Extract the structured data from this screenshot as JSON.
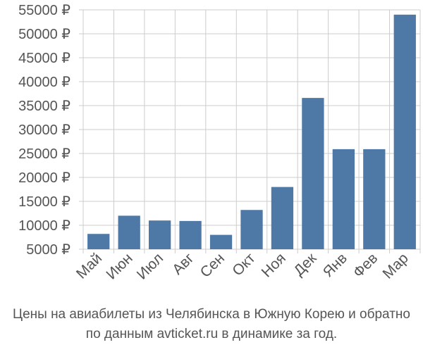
{
  "caption": {
    "line1": "Цены на авиабилеты из Челябинска в Южную Корею и обратно",
    "line2": "по данным avticket.ru в динамике за год."
  },
  "colors": {
    "bar": "#4e79a7",
    "grid": "#cccccc",
    "tick_text": "#555555",
    "background": "#ffffff"
  },
  "chart_data": {
    "type": "bar",
    "categories": [
      "Май",
      "Июн",
      "Июл",
      "Авг",
      "Сен",
      "Окт",
      "Ноя",
      "Дек",
      "Янв",
      "Фев",
      "Мар"
    ],
    "values": [
      8200,
      12000,
      11000,
      10900,
      8000,
      13200,
      18000,
      36600,
      25900,
      25900,
      54000
    ],
    "ylim": [
      5000,
      55000
    ],
    "yticks": [
      5000,
      10000,
      15000,
      20000,
      25000,
      30000,
      35000,
      40000,
      45000,
      50000,
      55000
    ],
    "ytick_labels": [
      "5000 ₽",
      "10000 ₽",
      "15000 ₽",
      "20000 ₽",
      "25000 ₽",
      "30000 ₽",
      "35000 ₽",
      "40000 ₽",
      "45000 ₽",
      "50000 ₽",
      "55000 ₽"
    ],
    "grid": true,
    "xlabel": "",
    "ylabel": ""
  }
}
